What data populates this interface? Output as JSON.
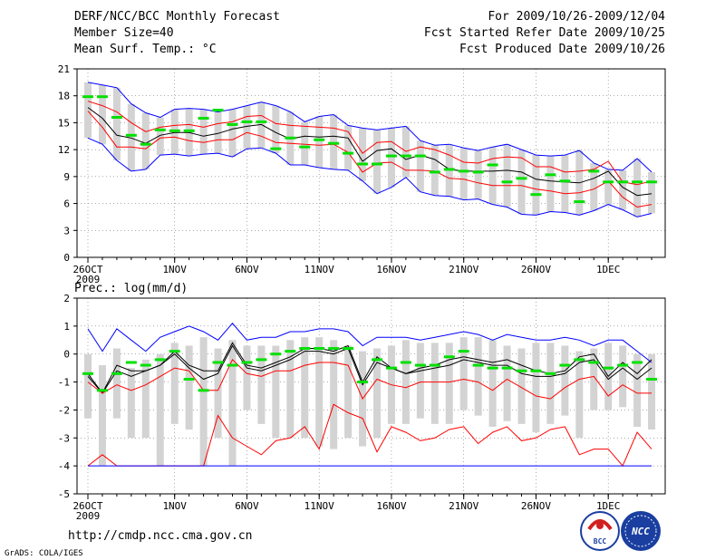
{
  "header": {
    "title": "DERF/NCC/BCC Monthly Forecast",
    "member_size": "Member Size=40",
    "variable": "Mean Surf. Temp.: °C",
    "period": "For 2009/10/26-2009/12/04",
    "refer_date": "Fcst Started Refer Date 2009/10/25",
    "produced_date": "Fcst Produced Date 2009/10/26"
  },
  "footer": {
    "url": "http://cmdp.ncc.cma.gov.cn",
    "credit": "GrADS: COLA/IGES",
    "logo_bcc": "BCC",
    "logo_ncc": "NCC"
  },
  "colors": {
    "envelope": "#0000ff",
    "percentile": "#ff0000",
    "mean": "#000000",
    "climatology": "#00e000",
    "spread_box": "#d3d3d3"
  },
  "chart_data": [
    {
      "type": "line",
      "title": "",
      "xlabel": "",
      "ylabel": "Mean Surf. Temp.: °C",
      "x_start": "2009-10-26",
      "x_tick_labels": [
        "26OCT",
        "1NOV",
        "6NOV",
        "11NOV",
        "16NOV",
        "21NOV",
        "26NOV",
        "1DEC"
      ],
      "x_tick_days": [
        0,
        6,
        11,
        16,
        21,
        26,
        31,
        36
      ],
      "year_label": "2009",
      "ylim": [
        0,
        21
      ],
      "y_ticks": [
        0,
        3,
        6,
        9,
        12,
        15,
        18,
        21
      ],
      "days": 40,
      "series": [
        {
          "name": "max",
          "color": "#0000ff",
          "values": [
            19.5,
            19.2,
            18.9,
            17.1,
            16.1,
            15.6,
            16.5,
            16.6,
            16.5,
            16.2,
            16.5,
            16.9,
            17.3,
            16.9,
            16.2,
            15.1,
            15.7,
            15.9,
            14.7,
            14.4,
            14.2,
            14.4,
            14.6,
            13.0,
            12.5,
            12.6,
            12.2,
            11.9,
            12.3,
            12.6,
            12.0,
            11.4,
            11.3,
            11.4,
            11.9,
            10.5,
            9.8,
            9.7,
            11.0,
            9.5
          ]
        },
        {
          "name": "p90",
          "color": "#ff0000",
          "values": [
            17.4,
            16.9,
            16.2,
            15.0,
            14.0,
            14.5,
            14.7,
            14.8,
            14.5,
            14.9,
            15.1,
            15.7,
            15.8,
            14.9,
            14.7,
            14.6,
            14.5,
            14.4,
            14.0,
            11.6,
            12.8,
            12.9,
            11.8,
            12.3,
            12.0,
            11.4,
            10.6,
            10.5,
            11.0,
            11.2,
            11.1,
            10.1,
            10.1,
            9.5,
            9.6,
            9.8,
            10.7,
            8.4,
            8.1,
            8.5
          ]
        },
        {
          "name": "mean",
          "color": "#000000",
          "values": [
            16.7,
            15.5,
            13.6,
            13.3,
            12.7,
            13.6,
            13.9,
            13.9,
            13.5,
            13.8,
            14.3,
            14.6,
            14.8,
            13.9,
            13.2,
            13.5,
            13.4,
            13.5,
            13.3,
            10.7,
            11.9,
            12.1,
            10.9,
            11.4,
            10.9,
            9.8,
            9.6,
            9.6,
            9.6,
            9.7,
            9.5,
            8.7,
            8.5,
            8.4,
            8.3,
            8.8,
            9.6,
            7.8,
            6.9,
            7.1
          ]
        },
        {
          "name": "p10",
          "color": "#ff0000",
          "values": [
            16.3,
            14.5,
            12.3,
            12.3,
            12.1,
            13.3,
            13.4,
            13.0,
            12.8,
            13.1,
            13.1,
            13.9,
            13.5,
            12.8,
            12.7,
            12.6,
            12.5,
            12.6,
            11.7,
            9.5,
            10.5,
            10.6,
            9.7,
            9.7,
            9.6,
            8.8,
            8.7,
            8.3,
            8.0,
            8.0,
            8.0,
            7.6,
            7.4,
            7.1,
            7.2,
            7.6,
            8.5,
            6.7,
            5.6,
            5.9
          ]
        },
        {
          "name": "min",
          "color": "#0000ff",
          "values": [
            13.3,
            12.6,
            10.8,
            9.6,
            9.8,
            11.4,
            11.5,
            11.3,
            11.5,
            11.6,
            11.2,
            12.1,
            12.2,
            11.6,
            10.3,
            10.3,
            10.0,
            9.8,
            9.7,
            8.5,
            7.1,
            7.8,
            8.9,
            7.3,
            6.9,
            6.8,
            6.4,
            6.5,
            5.9,
            5.6,
            4.8,
            4.7,
            5.1,
            5.0,
            4.7,
            5.2,
            5.9,
            5.3,
            4.5,
            4.9
          ]
        },
        {
          "name": "climatology",
          "color": "#00e000",
          "values": [
            17.9,
            17.9,
            15.6,
            13.6,
            12.6,
            14.2,
            14.1,
            14.1,
            15.5,
            16.4,
            14.8,
            15.1,
            15.1,
            12.1,
            13.3,
            12.3,
            13.1,
            12.7,
            11.6,
            10.4,
            10.4,
            11.3,
            11.3,
            11.3,
            9.5,
            9.8,
            9.6,
            9.5,
            10.3,
            8.4,
            8.8,
            7.0,
            9.2,
            8.5,
            6.2,
            9.6,
            8.4,
            8.4,
            8.4,
            8.4
          ]
        }
      ],
      "spread_boxes": {
        "high": [
          19.5,
          19.2,
          18.9,
          17.1,
          16.1,
          15.6,
          16.5,
          16.6,
          16.5,
          16.2,
          16.5,
          16.9,
          17.3,
          16.9,
          16.2,
          15.1,
          15.7,
          15.9,
          14.7,
          14.4,
          14.2,
          14.4,
          14.6,
          13.0,
          12.5,
          12.6,
          12.2,
          11.9,
          12.3,
          12.6,
          12.0,
          11.4,
          11.3,
          11.4,
          11.9,
          10.5,
          9.8,
          9.7,
          11.0,
          9.5
        ],
        "low": [
          13.3,
          12.6,
          10.8,
          9.6,
          9.8,
          11.4,
          11.5,
          11.3,
          11.5,
          11.6,
          11.2,
          12.1,
          12.2,
          11.6,
          10.3,
          10.3,
          10.0,
          9.8,
          9.7,
          8.5,
          7.1,
          7.8,
          8.9,
          7.3,
          6.9,
          6.8,
          6.4,
          6.5,
          5.9,
          5.6,
          4.8,
          4.7,
          5.1,
          5.0,
          4.7,
          5.2,
          5.9,
          5.3,
          4.5,
          4.9
        ]
      }
    },
    {
      "type": "line",
      "title": "",
      "xlabel": "",
      "ylabel": "Prec.: log(mm/d)",
      "x_start": "2009-10-26",
      "x_tick_labels": [
        "26OCT",
        "1NOV",
        "6NOV",
        "11NOV",
        "16NOV",
        "21NOV",
        "26NOV",
        "1DEC"
      ],
      "x_tick_days": [
        0,
        6,
        11,
        16,
        21,
        26,
        31,
        36
      ],
      "year_label": "2009",
      "ylim": [
        -5,
        2
      ],
      "y_ticks": [
        -5,
        -4,
        -3,
        -2,
        -1,
        0,
        1,
        2
      ],
      "days": 40,
      "series": [
        {
          "name": "max",
          "color": "#0000ff",
          "values": [
            0.9,
            0.1,
            0.9,
            0.5,
            0.1,
            0.6,
            0.8,
            1.0,
            0.8,
            0.5,
            1.1,
            0.5,
            0.6,
            0.6,
            0.8,
            0.8,
            0.9,
            0.9,
            0.8,
            0.3,
            0.6,
            0.6,
            0.6,
            0.5,
            0.6,
            0.7,
            0.8,
            0.7,
            0.5,
            0.7,
            0.6,
            0.5,
            0.5,
            0.6,
            0.5,
            0.3,
            0.5,
            0.5,
            0.1,
            -0.3
          ]
        },
        {
          "name": "p90",
          "color": "#000000",
          "values": [
            -0.7,
            -1.4,
            -0.4,
            -0.6,
            -0.6,
            -0.4,
            0.1,
            -0.4,
            -0.6,
            -0.6,
            0.4,
            -0.4,
            -0.5,
            -0.3,
            -0.1,
            0.2,
            0.2,
            0.1,
            0.3,
            -1.0,
            -0.1,
            -0.5,
            -0.7,
            -0.5,
            -0.4,
            -0.2,
            -0.1,
            -0.2,
            -0.3,
            -0.2,
            -0.4,
            -0.6,
            -0.7,
            -0.6,
            -0.1,
            0.0,
            -0.8,
            -0.3,
            -0.7,
            -0.2
          ]
        },
        {
          "name": "mean",
          "color": "#000000",
          "values": [
            -0.8,
            -1.4,
            -0.6,
            -0.8,
            -0.6,
            -0.4,
            0.0,
            -0.5,
            -0.9,
            -0.7,
            0.3,
            -0.5,
            -0.6,
            -0.4,
            -0.2,
            0.1,
            0.1,
            0.0,
            0.2,
            -1.1,
            -0.3,
            -0.5,
            -0.7,
            -0.6,
            -0.5,
            -0.4,
            -0.2,
            -0.3,
            -0.4,
            -0.4,
            -0.7,
            -0.8,
            -0.8,
            -0.7,
            -0.3,
            -0.2,
            -0.9,
            -0.5,
            -0.9,
            -0.5
          ]
        },
        {
          "name": "p10",
          "color": "#ff0000",
          "values": [
            -1.0,
            -1.4,
            -1.1,
            -1.3,
            -1.1,
            -0.8,
            -0.5,
            -0.6,
            -1.3,
            -1.3,
            -0.2,
            -0.7,
            -0.8,
            -0.6,
            -0.6,
            -0.4,
            -0.3,
            -0.3,
            -0.4,
            -1.6,
            -0.9,
            -1.1,
            -1.2,
            -1.0,
            -1.0,
            -1.0,
            -0.9,
            -1.0,
            -1.3,
            -0.9,
            -1.2,
            -1.5,
            -1.6,
            -1.2,
            -0.9,
            -0.8,
            -1.5,
            -1.1,
            -1.4,
            -1.4
          ]
        },
        {
          "name": "min",
          "color": "#ff0000",
          "values": [
            -4.0,
            -3.6,
            -4.0,
            -4.0,
            -4.0,
            -4.0,
            -4.0,
            -4.0,
            -4.0,
            -2.2,
            -3.0,
            -3.3,
            -3.6,
            -3.1,
            -3.0,
            -2.6,
            -3.4,
            -1.8,
            -2.1,
            -2.3,
            -3.5,
            -2.6,
            -2.8,
            -3.1,
            -3.0,
            -2.7,
            -2.6,
            -3.2,
            -2.8,
            -2.6,
            -3.1,
            -3.0,
            -2.7,
            -2.6,
            -3.6,
            -3.4,
            -3.4,
            -4.0,
            -2.8,
            -3.4
          ]
        },
        {
          "name": "floor",
          "color": "#0000ff",
          "values": [
            -4.0,
            -4.0,
            -4.0,
            -4.0,
            -4.0,
            -4.0,
            -4.0,
            -4.0,
            -4.0,
            -4.0,
            -4.0,
            -4.0,
            -4.0,
            -4.0,
            -4.0,
            -4.0,
            -4.0,
            -4.0,
            -4.0,
            -4.0,
            -4.0,
            -4.0,
            -4.0,
            -4.0,
            -4.0,
            -4.0,
            -4.0,
            -4.0,
            -4.0,
            -4.0,
            -4.0,
            -4.0,
            -4.0,
            -4.0,
            -4.0,
            -4.0,
            -4.0,
            -4.0,
            -4.0,
            -4.0
          ]
        },
        {
          "name": "climatology",
          "color": "#00e000",
          "values": [
            -0.7,
            -1.3,
            -0.7,
            -0.3,
            -0.4,
            -0.2,
            0.1,
            -0.9,
            -1.3,
            -0.3,
            -0.4,
            -0.3,
            -0.2,
            0.0,
            0.1,
            0.2,
            0.2,
            0.2,
            0.2,
            -1.0,
            -0.2,
            -0.5,
            -0.3,
            -0.4,
            -0.4,
            -0.1,
            0.1,
            -0.4,
            -0.5,
            -0.5,
            -0.6,
            -0.6,
            -0.7,
            -0.4,
            -0.2,
            -0.3,
            -0.5,
            -0.4,
            -0.3,
            -0.9
          ]
        }
      ],
      "spread_boxes": {
        "high": [
          0.0,
          -0.4,
          0.2,
          -0.5,
          -0.2,
          0.0,
          0.4,
          0.3,
          0.6,
          0.2,
          0.5,
          0.3,
          0.3,
          0.3,
          0.5,
          0.6,
          0.6,
          0.5,
          0.3,
          0.1,
          0.2,
          0.3,
          0.5,
          0.4,
          0.4,
          0.4,
          0.6,
          0.6,
          0.5,
          0.3,
          0.2,
          0.4,
          0.4,
          0.3,
          0.1,
          0.2,
          0.4,
          0.3,
          0.0,
          0.0
        ],
        "low": [
          -2.3,
          -4.0,
          -2.3,
          -3.0,
          -3.0,
          -4.0,
          -2.5,
          -2.7,
          -4.0,
          -3.0,
          -4.0,
          -2.0,
          -2.5,
          -3.0,
          -3.0,
          -3.0,
          -3.3,
          -3.4,
          -3.0,
          -3.3,
          -3.0,
          -2.5,
          -2.5,
          -2.3,
          -2.5,
          -2.5,
          -2.0,
          -2.2,
          -2.6,
          -2.4,
          -2.5,
          -2.8,
          -2.5,
          -2.2,
          -3.0,
          -2.0,
          -2.0,
          -1.9,
          -2.6,
          -2.7
        ]
      }
    }
  ]
}
